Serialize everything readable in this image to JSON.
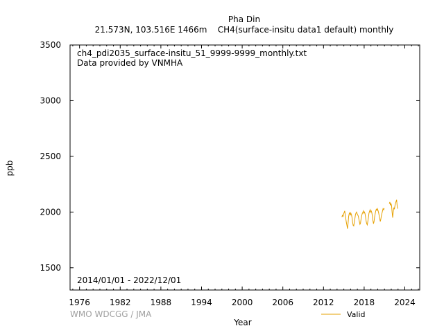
{
  "chart_data": {
    "type": "line",
    "title": "Pha Din",
    "subtitle": "21.573N, 103.516E 1466m    CH4(surface-insitu data1 default) monthly",
    "xlabel": "Year",
    "ylabel": "ppb",
    "xlim": [
      1974.6,
      2026.2
    ],
    "ylim": [
      1300,
      3500
    ],
    "x_ticks": [
      1976,
      1982,
      1988,
      1994,
      2000,
      2006,
      2012,
      2018,
      2024
    ],
    "y_ticks": [
      1500,
      2000,
      2500,
      3000,
      3500
    ],
    "annotations": {
      "filename": "ch4_pdi2035_surface-insitu_51_9999-9999_monthly.txt",
      "provider": "Data provided by VNMHA",
      "date_range": "2014/01/01 - 2022/12/01",
      "credit": "WMO WDCGG / JMA"
    },
    "legend_position": "bottom-right",
    "grid": false,
    "series": [
      {
        "name": "Valid",
        "color": "#e6a000",
        "points": [
          [
            2014.71,
            1955
          ],
          [
            2014.79,
            1970
          ],
          [
            2014.88,
            1960
          ],
          [
            2014.96,
            1980
          ],
          [
            2015.04,
            1995
          ],
          [
            2015.13,
            2010
          ],
          [
            2015.21,
            1975
          ],
          [
            2015.29,
            1940
          ],
          [
            2015.38,
            1905
          ],
          [
            2015.46,
            1880
          ],
          [
            2015.54,
            1850
          ],
          [
            2015.63,
            1900
          ],
          [
            2015.71,
            1960
          ],
          [
            2015.79,
            1985
          ],
          [
            2015.88,
            1995
          ],
          [
            2015.96,
            1970
          ],
          [
            2016.04,
            1990
          ],
          [
            2016.13,
            1975
          ],
          [
            2016.21,
            1950
          ],
          [
            2016.29,
            1910
          ],
          [
            2016.38,
            1880
          ],
          [
            2016.46,
            1875
          ],
          [
            2016.54,
            1905
          ],
          [
            2016.63,
            1940
          ],
          [
            2016.71,
            1975
          ],
          [
            2016.79,
            1990
          ],
          [
            2016.88,
            2000
          ],
          [
            2016.96,
            1985
          ],
          [
            2017.04,
            1975
          ],
          [
            2017.13,
            1965
          ],
          [
            2017.21,
            1940
          ],
          [
            2017.29,
            1915
          ],
          [
            2017.38,
            1890
          ],
          [
            2017.46,
            1900
          ],
          [
            2017.54,
            1935
          ],
          [
            2017.63,
            1965
          ],
          [
            2017.71,
            1985
          ],
          [
            2017.79,
            1995
          ],
          [
            2017.88,
            2010
          ],
          [
            2017.96,
            1990
          ],
          [
            2018.04,
            2000
          ],
          [
            2018.13,
            1985
          ],
          [
            2018.21,
            1955
          ],
          [
            2018.29,
            1920
          ],
          [
            2018.38,
            1895
          ],
          [
            2018.46,
            1885
          ],
          [
            2018.54,
            1915
          ],
          [
            2018.63,
            1950
          ],
          [
            2018.71,
            1990
          ],
          [
            2018.79,
            2005
          ],
          [
            2018.88,
            2020
          ],
          [
            2018.96,
            2000
          ],
          [
            2019.04,
            2010
          ],
          [
            2019.13,
            1995
          ],
          [
            2019.21,
            1965
          ],
          [
            2019.29,
            1925
          ],
          [
            2019.38,
            1895
          ],
          [
            2019.46,
            1915
          ],
          [
            2019.54,
            1955
          ],
          [
            2019.63,
            1985
          ],
          [
            2019.71,
            2010
          ],
          [
            2019.79,
            2025
          ],
          [
            2019.88,
            2015
          ],
          [
            2019.96,
            2030
          ],
          [
            2020.04,
            2015
          ],
          [
            2020.13,
            1995
          ],
          [
            2020.21,
            1970
          ],
          [
            2020.29,
            1945
          ],
          [
            2020.38,
            1915
          ],
          [
            2020.46,
            1935
          ],
          [
            2020.54,
            1965
          ],
          [
            2020.63,
            1990
          ],
          [
            2020.71,
            2010
          ],
          [
            2020.79,
            2030
          ],
          [
            2020.88,
            2020
          ],
          [
            2020.96,
            2035
          ],
          [
            2021.71,
            2075
          ],
          [
            2021.79,
            2090
          ],
          [
            2021.88,
            2060
          ],
          [
            2021.96,
            2075
          ],
          [
            2022.04,
            2060
          ],
          [
            2022.13,
            1995
          ],
          [
            2022.21,
            1950
          ],
          [
            2022.29,
            2000
          ],
          [
            2022.38,
            2040
          ],
          [
            2022.46,
            2025
          ],
          [
            2022.54,
            2055
          ],
          [
            2022.63,
            2080
          ],
          [
            2022.71,
            2095
          ],
          [
            2022.79,
            2110
          ],
          [
            2022.88,
            2050
          ],
          [
            2022.96,
            2030
          ]
        ]
      }
    ]
  }
}
